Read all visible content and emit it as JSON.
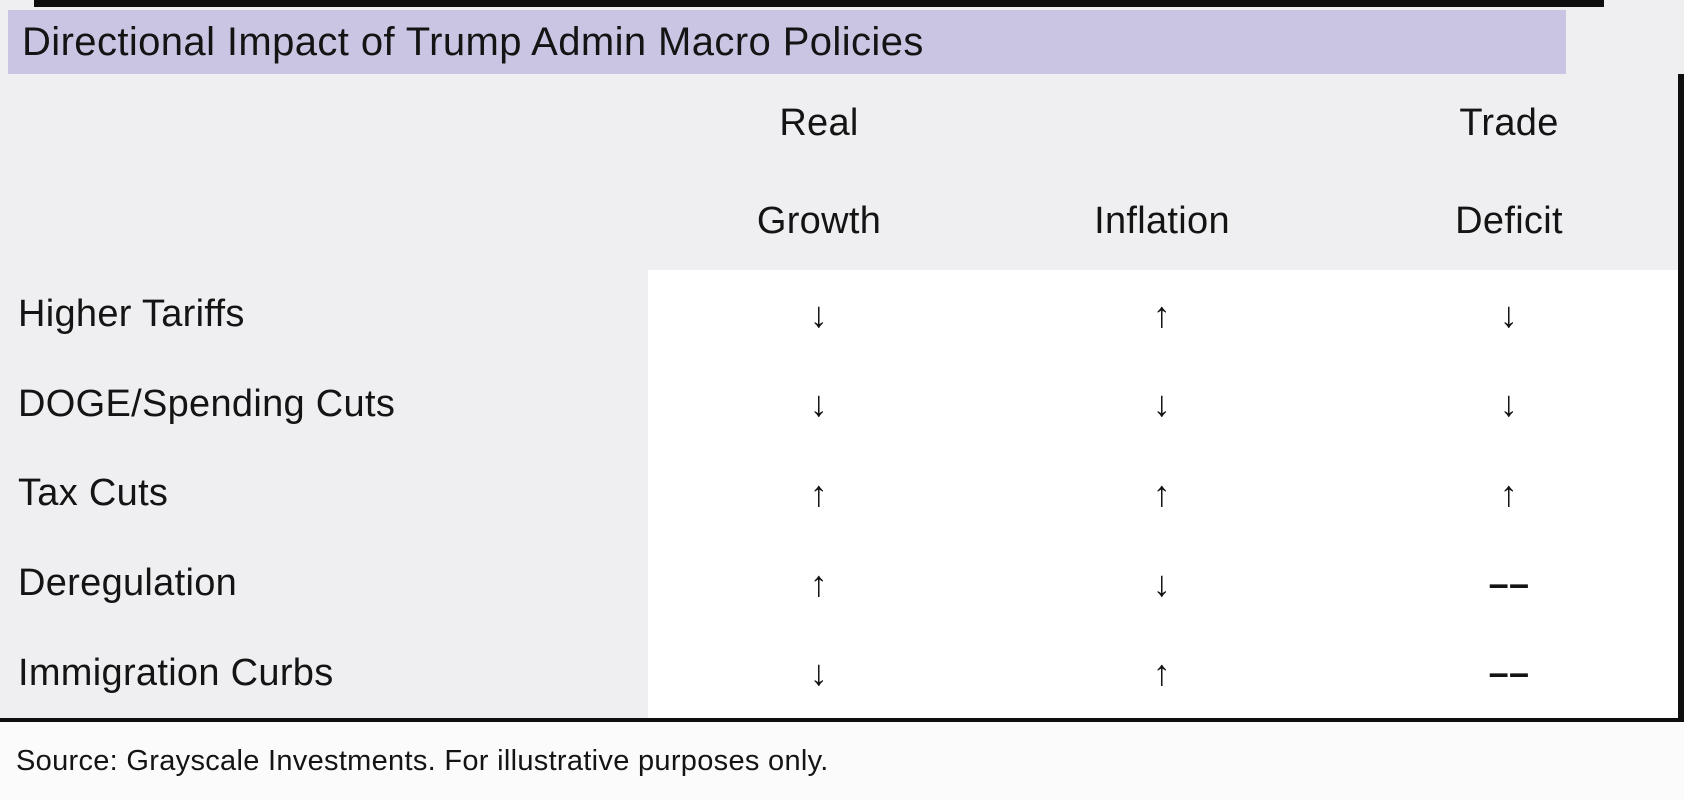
{
  "title": "Directional Impact of Trump Admin Macro Policies",
  "table": {
    "header": {
      "real_line1": "Real",
      "real_line2": "Growth",
      "inflation_line1": "",
      "inflation_line2": "Inflation",
      "trade_line1": "Trade",
      "trade_line2": "Deficit"
    },
    "rows": [
      {
        "label": "Higher Tariffs",
        "real_growth": "↓",
        "inflation": "↑",
        "trade_deficit": "↓"
      },
      {
        "label": "DOGE/Spending Cuts",
        "real_growth": "↓",
        "inflation": "↓",
        "trade_deficit": "↓"
      },
      {
        "label": "Tax Cuts",
        "real_growth": "↑",
        "inflation": "↑",
        "trade_deficit": "↑"
      },
      {
        "label": "Deregulation",
        "real_growth": "↑",
        "inflation": "↓",
        "trade_deficit": "––"
      },
      {
        "label": "Immigration Curbs",
        "real_growth": "↓",
        "inflation": "↑",
        "trade_deficit": "––"
      }
    ]
  },
  "source": "Source: Grayscale Investments. For illustrative purposes only.",
  "colors": {
    "title_band": "#cbc5e4",
    "background": "#efeff1",
    "cell_background": "#ffffff",
    "text": "#141414",
    "rule": "#0e0e0e"
  },
  "chart_data": {
    "type": "table",
    "title": "Directional Impact of Trump Admin Macro Policies",
    "columns": [
      "Real Growth",
      "Inflation",
      "Trade Deficit"
    ],
    "rows": [
      {
        "policy": "Higher Tariffs",
        "real_growth": "down",
        "inflation": "up",
        "trade_deficit": "down"
      },
      {
        "policy": "DOGE/Spending Cuts",
        "real_growth": "down",
        "inflation": "down",
        "trade_deficit": "down"
      },
      {
        "policy": "Tax Cuts",
        "real_growth": "up",
        "inflation": "up",
        "trade_deficit": "up"
      },
      {
        "policy": "Deregulation",
        "real_growth": "up",
        "inflation": "down",
        "trade_deficit": "neutral"
      },
      {
        "policy": "Immigration Curbs",
        "real_growth": "down",
        "inflation": "up",
        "trade_deficit": "neutral"
      }
    ],
    "source": "Source: Grayscale Investments. For illustrative purposes only."
  }
}
